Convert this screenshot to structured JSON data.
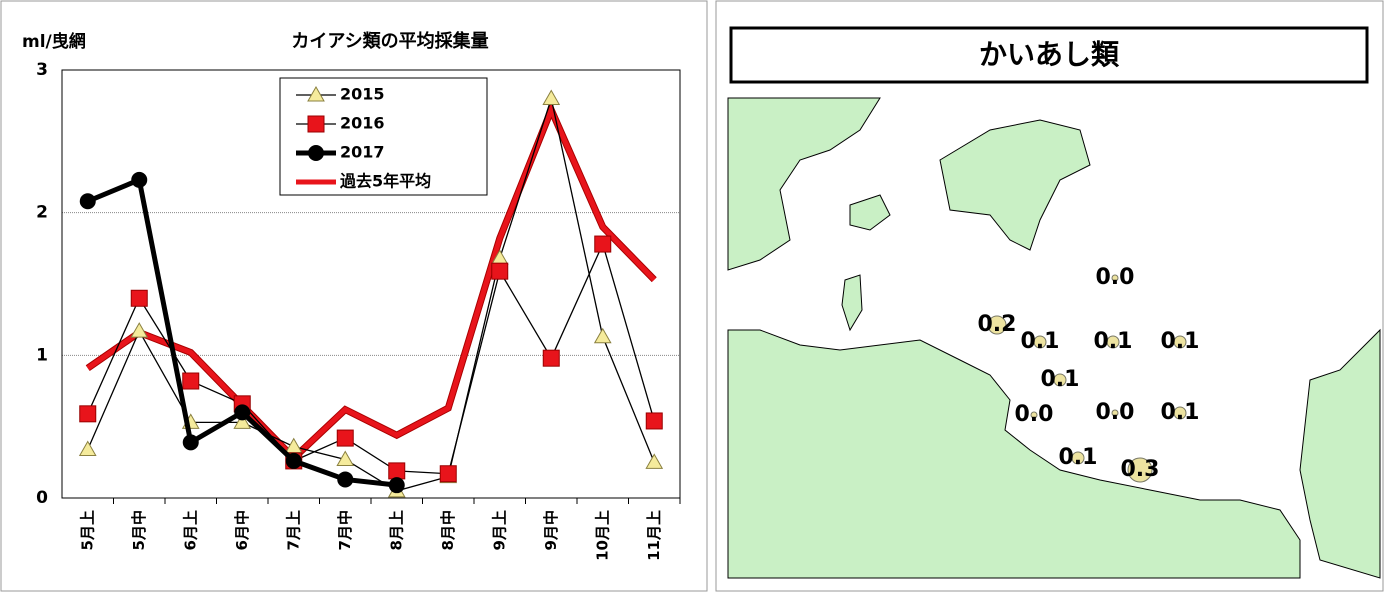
{
  "chart_data": {
    "type": "line",
    "title": "カイアシ類の平均採集量",
    "y_label": "ml/曳網",
    "categories": [
      "5月上",
      "5月中",
      "6月上",
      "6月中",
      "7月上",
      "7月中",
      "8月上",
      "8月中",
      "9月上",
      "9月中",
      "10月上",
      "11月上"
    ],
    "ylim": [
      0,
      3
    ],
    "yticks": [
      0,
      1,
      2,
      3
    ],
    "grid": true,
    "legend": "top-center",
    "series": [
      {
        "name": "過去5年平均",
        "color": "#e8141b",
        "marker": "none",
        "values": [
          0.91,
          1.16,
          1.02,
          0.65,
          0.28,
          0.62,
          0.44,
          0.63,
          1.82,
          2.72,
          1.9,
          1.53
        ]
      },
      {
        "name": "2015",
        "color": "#f5eb9c",
        "marker": "triangle",
        "values": [
          0.34,
          1.17,
          0.53,
          0.53,
          0.36,
          0.27,
          0.05,
          0.15,
          1.68,
          2.8,
          1.13,
          0.25
        ]
      },
      {
        "name": "2016",
        "color": "#e8141b",
        "marker": "square",
        "values": [
          0.59,
          1.4,
          0.82,
          0.66,
          0.26,
          0.42,
          0.19,
          0.17,
          1.59,
          0.98,
          1.78,
          0.54
        ]
      },
      {
        "name": "2017",
        "color": "#000000",
        "marker": "circle",
        "values": [
          2.08,
          2.23,
          0.39,
          0.6,
          0.26,
          0.13,
          0.09,
          null,
          null,
          null,
          null,
          null
        ]
      }
    ]
  },
  "map": {
    "title": "かいあし類",
    "stations": [
      {
        "value": 0.0,
        "label": "0.0"
      },
      {
        "value": 0.2,
        "label": "0.2"
      },
      {
        "value": 0.1,
        "label": "0.1"
      },
      {
        "value": 0.1,
        "label": "0.1"
      },
      {
        "value": 0.1,
        "label": "0.1"
      },
      {
        "value": 0.1,
        "label": "0.1"
      },
      {
        "value": 0.0,
        "label": "0.0"
      },
      {
        "value": 0.0,
        "label": "0.0"
      },
      {
        "value": 0.1,
        "label": "0.1"
      },
      {
        "value": 0.1,
        "label": "0.1"
      },
      {
        "value": 0.3,
        "label": "0.3"
      }
    ]
  }
}
